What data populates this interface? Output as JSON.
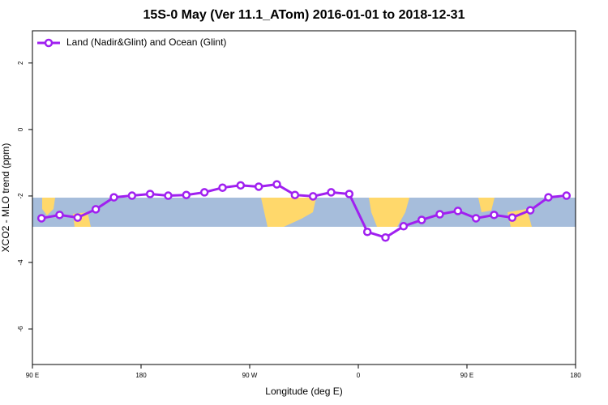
{
  "chart_data": {
    "type": "line",
    "title": "15S-0 May (Ver 11.1_ATom)   2016-01-01 to 2018-12-31",
    "x_label": "Longitude (deg E)",
    "y_label": "XCO2 - MLO trend (ppm)",
    "x": [
      97.5,
      112.5,
      127.5,
      142.5,
      157.5,
      172.5,
      187.5,
      202.5,
      217.5,
      232.5,
      247.5,
      262.5,
      277.5,
      292.5,
      307.5,
      322.5,
      337.5,
      352.5,
      367.5,
      382.5,
      397.5,
      412.5,
      427.5,
      442.5,
      457.5,
      472.5,
      487.5,
      502.5,
      517.5,
      532.5
    ],
    "series": [
      {
        "name": "Land (Nadir&Glint) and Ocean (Glint)",
        "color": "#a020f0",
        "values": [
          -2.67,
          -2.57,
          -2.65,
          -2.4,
          -2.04,
          -1.99,
          -1.94,
          -1.99,
          -1.97,
          -1.89,
          -1.75,
          -1.68,
          -1.72,
          -1.65,
          -1.97,
          -2.01,
          -1.89,
          -1.94,
          -3.08,
          -3.25,
          -2.91,
          -2.72,
          -2.55,
          -2.45,
          -2.67,
          -2.57,
          -2.65,
          -2.43,
          -2.04,
          -1.99
        ]
      }
    ],
    "xlim": [
      90,
      540
    ],
    "xticks": [
      {
        "value": 90,
        "label": "90 E"
      },
      {
        "value": 180,
        "label": "180"
      },
      {
        "value": 270,
        "label": "90 W"
      },
      {
        "value": 360,
        "label": "0"
      },
      {
        "value": 450,
        "label": "90 E"
      },
      {
        "value": 540,
        "label": "180"
      }
    ],
    "ylim": [
      -7.07,
      2.97
    ],
    "yticks": [
      -6,
      -4,
      -2,
      0,
      2
    ],
    "legend": "top-left"
  }
}
